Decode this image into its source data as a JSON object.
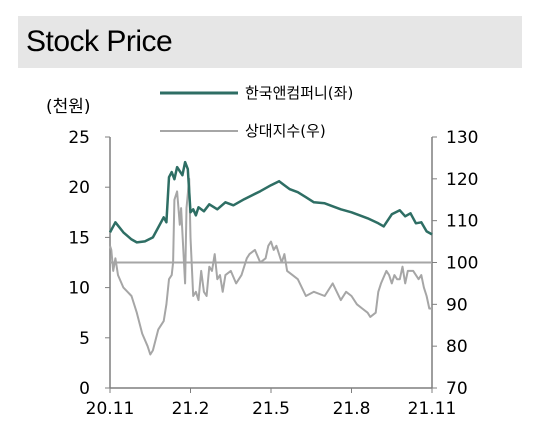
{
  "header": {
    "title": "Stock Price"
  },
  "colors": {
    "primary": "#2e6e64",
    "secondary": "#a6a6a6",
    "axis": "#7f7f7f",
    "baseline": "#a6a6a6"
  },
  "chart_data": {
    "type": "line",
    "left_axis_unit": "(천원)",
    "x_tick_labels": [
      "20.11",
      "21.2",
      "21.5",
      "21.8",
      "21.11"
    ],
    "x_range": [
      0,
      12
    ],
    "ylim_left": [
      0,
      25
    ],
    "yticks_left": [
      "0",
      "5",
      "10",
      "15",
      "20",
      "25"
    ],
    "ylim_right": [
      70,
      130
    ],
    "yticks_right": [
      "70",
      "80",
      "90",
      "100",
      "110",
      "120",
      "130"
    ],
    "reference_line_right": 100,
    "grid": false,
    "legend_position": "top-center",
    "series": [
      {
        "name": "한국앤컴퍼니(좌)",
        "axis": "left",
        "x": [
          0,
          0.2,
          0.5,
          0.8,
          1.0,
          1.3,
          1.6,
          1.8,
          2.0,
          2.1,
          2.2,
          2.3,
          2.4,
          2.5,
          2.7,
          2.8,
          2.9,
          3.0,
          3.1,
          3.2,
          3.3,
          3.5,
          3.7,
          4.0,
          4.3,
          4.6,
          5.0,
          5.3,
          5.6,
          6.0,
          6.3,
          6.5,
          6.7,
          7.0,
          7.3,
          7.6,
          8.0,
          8.3,
          8.6,
          9.0,
          9.3,
          9.6,
          10.0,
          10.2,
          10.5,
          10.8,
          11.0,
          11.2,
          11.4,
          11.6,
          11.8,
          12.0
        ],
        "values": [
          15.5,
          16.5,
          15.5,
          14.8,
          14.5,
          14.6,
          15.0,
          16.0,
          17.0,
          16.5,
          21.0,
          21.5,
          20.8,
          22.0,
          21.2,
          22.5,
          21.8,
          17.5,
          17.8,
          17.2,
          18.0,
          17.6,
          18.3,
          17.8,
          18.5,
          18.2,
          18.8,
          19.2,
          19.6,
          20.2,
          20.6,
          20.2,
          19.8,
          19.5,
          19.0,
          18.5,
          18.4,
          18.1,
          17.8,
          17.5,
          17.2,
          16.9,
          16.4,
          16.1,
          17.3,
          17.7,
          17.1,
          17.4,
          16.4,
          16.5,
          15.6,
          15.3
        ]
      },
      {
        "name": "상대지수(우)",
        "axis": "right",
        "x": [
          0,
          0.05,
          0.12,
          0.2,
          0.3,
          0.5,
          0.8,
          1.0,
          1.2,
          1.4,
          1.5,
          1.6,
          1.8,
          2.0,
          2.1,
          2.2,
          2.3,
          2.35,
          2.4,
          2.5,
          2.6,
          2.65,
          2.8,
          2.85,
          2.95,
          3.0,
          3.1,
          3.2,
          3.3,
          3.4,
          3.5,
          3.6,
          3.7,
          3.8,
          3.9,
          4.0,
          4.1,
          4.2,
          4.3,
          4.5,
          4.7,
          4.9,
          5.1,
          5.2,
          5.4,
          5.6,
          5.8,
          5.9,
          6.0,
          6.1,
          6.2,
          6.4,
          6.5,
          6.6,
          6.8,
          7.0,
          7.3,
          7.6,
          8.0,
          8.3,
          8.6,
          8.8,
          9.0,
          9.2,
          9.4,
          9.6,
          9.7,
          9.9,
          10.0,
          10.1,
          10.3,
          10.4,
          10.5,
          10.6,
          10.7,
          10.8,
          10.9,
          11.0,
          11.1,
          11.3,
          11.5,
          11.6,
          11.7,
          11.8,
          11.9,
          12.0
        ],
        "values": [
          104,
          103,
          98,
          101,
          97,
          94,
          92,
          88,
          83,
          80,
          78,
          79,
          84,
          86,
          90,
          96,
          97,
          100,
          115,
          117,
          109,
          113,
          95,
          113,
          120,
          106,
          92,
          93,
          91,
          98,
          93,
          92,
          99,
          98,
          102,
          96,
          97,
          93,
          97,
          98,
          95,
          97,
          101,
          102,
          103,
          100,
          101,
          104,
          105,
          103,
          104,
          100,
          102,
          98,
          97,
          96,
          92,
          93,
          92,
          95,
          91,
          93,
          92,
          90,
          89,
          88,
          87,
          88,
          93,
          95,
          98,
          97,
          95,
          97,
          96,
          96,
          99,
          95,
          98,
          98,
          96,
          97,
          94,
          92,
          89,
          89
        ]
      }
    ]
  }
}
